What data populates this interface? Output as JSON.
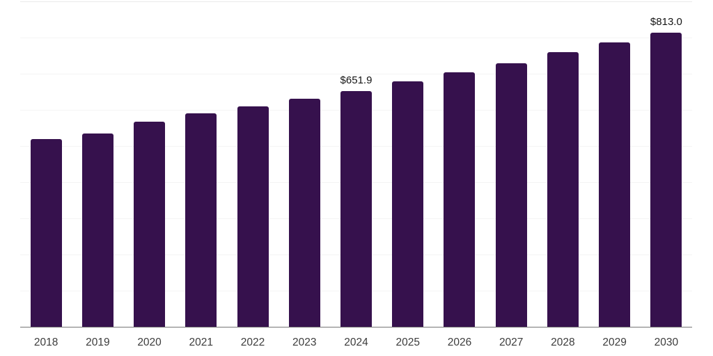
{
  "chart_data": {
    "type": "bar",
    "title": "",
    "xlabel": "",
    "ylabel": "",
    "categories": [
      "2018",
      "2019",
      "2020",
      "2021",
      "2022",
      "2023",
      "2024",
      "2025",
      "2026",
      "2027",
      "2028",
      "2029",
      "2030"
    ],
    "values": [
      519,
      535,
      567,
      590,
      610,
      631,
      651.9,
      678,
      704,
      729,
      759,
      786,
      813.0
    ],
    "bar_labels": [
      "",
      "",
      "",
      "",
      "",
      "",
      "$651.9",
      "",
      "",
      "",
      "",
      "",
      "$813.0"
    ],
    "ylim": [
      0,
      900
    ],
    "gridline_step": 100,
    "grid": "horizontal-only, no y-axis tick labels",
    "legend": "none",
    "bar_color": "#36114d",
    "value_label_color": "#141414",
    "axis_tick_label_color": "#3c3c3c",
    "gridline_color": "#f4f4f4",
    "top_gridline_color": "#e9e9e9",
    "axis_line_color": "#757575"
  }
}
